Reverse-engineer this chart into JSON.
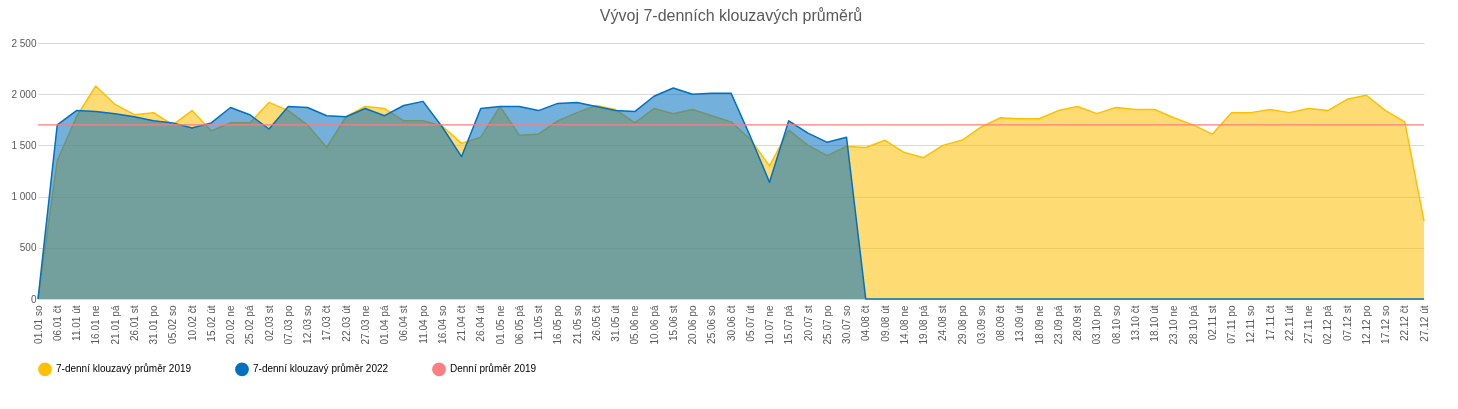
{
  "chart_data": {
    "type": "area",
    "title": "Vývoj 7-denních klouzavých průměrů",
    "categories": [
      "01.01 so",
      "06.01 čt",
      "11.01 út",
      "16.01 ne",
      "21.01 pá",
      "26.01 st",
      "31.01 po",
      "05.02 so",
      "10.02 čt",
      "15.02 út",
      "20.02 ne",
      "25.02 pá",
      "02.03 st",
      "07.03 po",
      "12.03 so",
      "17.03 čt",
      "22.03 út",
      "27.03 ne",
      "01.04 pá",
      "06.04 st",
      "11.04 po",
      "16.04 so",
      "21.04 čt",
      "26.04 út",
      "01.05 ne",
      "06.05 pá",
      "11.05 st",
      "16.05 po",
      "21.05 so",
      "26.05 čt",
      "31.05 út",
      "05.06 ne",
      "10.06 pá",
      "15.06 st",
      "20.06 po",
      "25.06 so",
      "30.06 čt",
      "05.07 út",
      "10.07 ne",
      "15.07 pá",
      "20.07 st",
      "25.07 po",
      "30.07 so",
      "04.08 čt",
      "09.08 út",
      "14.08 ne",
      "19.08 pá",
      "24.08 st",
      "29.08 po",
      "03.09 so",
      "08.09 čt",
      "13.09 út",
      "18.09 ne",
      "23.09 pá",
      "28.09 st",
      "03.10 po",
      "08.10 so",
      "13.10 čt",
      "18.10 út",
      "23.10 ne",
      "28.10 pá",
      "02.11 st",
      "07.11 po",
      "12.11 so",
      "17.11 čt",
      "22.11 út",
      "27.11 ne",
      "02.12 pá",
      "07.12 st",
      "12.12 po",
      "17.12 so",
      "22.12 čt",
      "27.12 út"
    ],
    "series": [
      {
        "name": "7-denní klouzavý průměr 2019",
        "color": "#ffc000",
        "values": [
          0,
          1350,
          1780,
          2080,
          1900,
          1800,
          1820,
          1700,
          1840,
          1640,
          1720,
          1720,
          1920,
          1840,
          1700,
          1480,
          1780,
          1880,
          1860,
          1740,
          1740,
          1690,
          1520,
          1580,
          1880,
          1600,
          1610,
          1740,
          1820,
          1890,
          1850,
          1720,
          1860,
          1810,
          1850,
          1790,
          1730,
          1560,
          1300,
          1650,
          1500,
          1400,
          1490,
          1480,
          1550,
          1430,
          1380,
          1500,
          1550,
          1680,
          1770,
          1760,
          1760,
          1840,
          1880,
          1810,
          1870,
          1850,
          1850,
          1770,
          1700,
          1610,
          1820,
          1820,
          1850,
          1820,
          1860,
          1840,
          1950,
          1990,
          1840,
          1730,
          760
        ]
      },
      {
        "name": "7-denní klouzavý průměr 2022",
        "color": "#0070c0",
        "values": [
          0,
          1700,
          1840,
          1830,
          1810,
          1780,
          1740,
          1720,
          1670,
          1720,
          1870,
          1800,
          1660,
          1880,
          1870,
          1790,
          1780,
          1860,
          1790,
          1890,
          1930,
          1680,
          1390,
          1860,
          1880,
          1880,
          1840,
          1910,
          1920,
          1880,
          1840,
          1830,
          1980,
          2060,
          2000,
          2010,
          2010,
          1590,
          1140,
          1740,
          1620,
          1530,
          1580,
          0,
          0,
          0,
          0,
          0,
          0,
          0,
          0,
          0,
          0,
          0,
          0,
          0,
          0,
          0,
          0,
          0,
          0,
          0,
          0,
          0,
          0,
          0,
          0,
          0,
          0,
          0,
          0,
          0,
          0
        ]
      },
      {
        "name": "Denní průměr 2019",
        "type": "line",
        "color": "#ff7c80",
        "values": [
          1700,
          1700,
          1700,
          1700,
          1700,
          1700,
          1700,
          1700,
          1700,
          1700,
          1700,
          1700,
          1700,
          1700,
          1700,
          1700,
          1700,
          1700,
          1700,
          1700,
          1700,
          1700,
          1700,
          1700,
          1700,
          1700,
          1700,
          1700,
          1700,
          1700,
          1700,
          1700,
          1700,
          1700,
          1700,
          1700,
          1700,
          1700,
          1700,
          1700,
          1700,
          1700,
          1700,
          1700,
          1700,
          1700,
          1700,
          1700,
          1700,
          1700,
          1700,
          1700,
          1700,
          1700,
          1700,
          1700,
          1700,
          1700,
          1700,
          1700,
          1700,
          1700,
          1700,
          1700,
          1700,
          1700,
          1700,
          1700,
          1700,
          1700,
          1700,
          1700,
          1700
        ]
      }
    ],
    "ylim": [
      0,
      2500
    ],
    "yticks": [
      0,
      500,
      {
        "value": 1000,
        "label": "1 000"
      },
      {
        "value": 1500,
        "label": "1 500"
      },
      {
        "value": 2000,
        "label": "2 000"
      },
      {
        "value": 2500,
        "label": "2 500"
      }
    ],
    "grid": "y",
    "legend": "bottom"
  }
}
